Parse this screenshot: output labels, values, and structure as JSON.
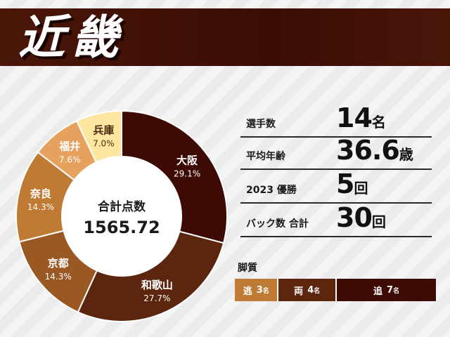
{
  "region_title": "近畿",
  "chart_data": {
    "type": "donut",
    "center_label": "合計点数",
    "center_value": "1565.72",
    "slices": [
      {
        "name": "大阪",
        "percent": 29.1,
        "label": "29.1%",
        "color": "#3d0a04",
        "text_color": "#ffffff"
      },
      {
        "name": "和歌山",
        "percent": 27.7,
        "label": "27.7%",
        "color": "#5c260e",
        "text_color": "#ffffff"
      },
      {
        "name": "京都",
        "percent": 14.3,
        "label": "14.3%",
        "color": "#9a5823",
        "text_color": "#ffffff"
      },
      {
        "name": "奈良",
        "percent": 14.3,
        "label": "14.3%",
        "color": "#bf7a33",
        "text_color": "#ffffff"
      },
      {
        "name": "福井",
        "percent": 7.6,
        "label": "7.6%",
        "color": "#e6a25d",
        "text_color": "#ffffff"
      },
      {
        "name": "兵庫",
        "percent": 7.0,
        "label": "7.0%",
        "color": "#fde7a0",
        "text_color": "#4a2a10"
      }
    ]
  },
  "stats": [
    {
      "label": "選手数",
      "value": "14",
      "unit": "名"
    },
    {
      "label": "平均年齢",
      "value": "36.6",
      "unit": "歳"
    },
    {
      "label": "2023 優勝",
      "value": "5",
      "unit": "回"
    },
    {
      "label": "バック数 合計",
      "value": "30",
      "unit": "回"
    }
  ],
  "kyakushitsu": {
    "title": "脚質",
    "segments": [
      {
        "name": "逃",
        "count": "3",
        "unit": "名",
        "value": 3,
        "color": "#bf7a33"
      },
      {
        "name": "両",
        "count": "4",
        "unit": "名",
        "value": 4,
        "color": "#5c260e"
      },
      {
        "name": "追",
        "count": "7",
        "unit": "名",
        "value": 7,
        "color": "#3d0a04"
      }
    ]
  }
}
